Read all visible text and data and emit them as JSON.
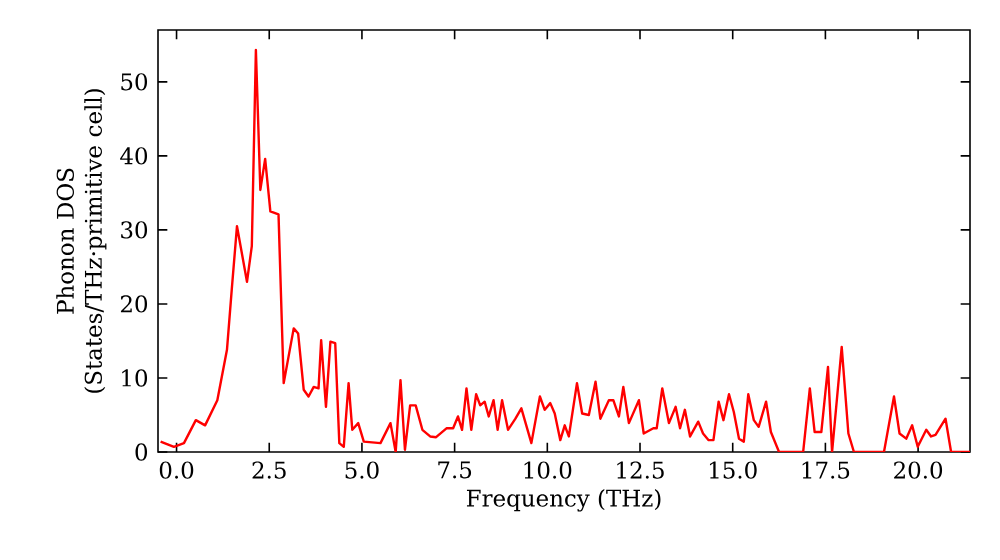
{
  "chart_data": {
    "type": "line",
    "xlabel": "Frequency (THz)",
    "ylabel": "Phonon DOS (States/THz·primitive cell)",
    "xlim": [
      -0.5,
      21.4
    ],
    "ylim": [
      0,
      57
    ],
    "xticks": [
      {
        "value": 0,
        "label": "0.0"
      },
      {
        "value": 2.5,
        "label": "2.5"
      },
      {
        "value": 5,
        "label": "5.0"
      },
      {
        "value": 7.5,
        "label": "7.5"
      },
      {
        "value": 10,
        "label": "10.0"
      },
      {
        "value": 12.5,
        "label": "12.5"
      },
      {
        "value": 15,
        "label": "15.0"
      },
      {
        "value": 17.5,
        "label": "17.5"
      },
      {
        "value": 20,
        "label": "20.0"
      }
    ],
    "yticks": [
      0,
      10,
      20,
      30,
      40,
      50
    ],
    "marker": "none",
    "line_style": "solid",
    "series": [
      {
        "color": "#ff0000",
        "x": [
          -0.43,
          -0.07,
          0.2,
          0.52,
          0.77,
          1.1,
          1.36,
          1.49,
          1.63,
          1.9,
          2.03,
          2.14,
          2.26,
          2.39,
          2.53,
          2.75,
          2.89,
          3.16,
          3.28,
          3.43,
          3.56,
          3.7,
          3.83,
          3.9,
          4.03,
          4.15,
          4.28,
          4.39,
          4.51,
          4.64,
          4.74,
          4.9,
          5.05,
          5.5,
          5.77,
          5.91,
          6.04,
          6.16,
          6.3,
          6.45,
          6.63,
          6.84,
          7.0,
          7.28,
          7.46,
          7.59,
          7.7,
          7.82,
          7.95,
          8.08,
          8.19,
          8.31,
          8.42,
          8.55,
          8.66,
          8.78,
          8.94,
          9.14,
          9.3,
          9.57,
          9.8,
          9.93,
          10.08,
          10.2,
          10.35,
          10.47,
          10.58,
          10.8,
          10.94,
          11.12,
          11.3,
          11.43,
          11.66,
          11.78,
          11.93,
          12.05,
          12.2,
          12.47,
          12.6,
          12.86,
          12.95,
          13.1,
          13.28,
          13.46,
          13.58,
          13.71,
          13.85,
          14.07,
          14.2,
          14.35,
          14.48,
          14.62,
          14.75,
          14.9,
          15.03,
          15.17,
          15.3,
          15.42,
          15.57,
          15.7,
          15.9,
          16.03,
          16.25,
          16.9,
          17.08,
          17.21,
          17.39,
          17.57,
          17.68,
          17.94,
          18.12,
          18.27,
          19.08,
          19.35,
          19.5,
          19.68,
          19.84,
          19.99,
          20.22,
          20.35,
          20.47,
          20.74,
          20.89,
          21.4
        ],
        "values": [
          1.4,
          0.7,
          1.2,
          4.3,
          3.6,
          7.0,
          13.8,
          22,
          30.5,
          23,
          27.8,
          54.3,
          35.4,
          39.6,
          32.5,
          32.1,
          9.3,
          16.7,
          16,
          8.4,
          7.5,
          8.8,
          8.6,
          15.1,
          6.1,
          14.9,
          14.7,
          1.2,
          0.7,
          9.3,
          3,
          3.9,
          1.4,
          1.2,
          3.9,
          0,
          9.7,
          0.3,
          6.3,
          6.3,
          3,
          2.1,
          2,
          3.2,
          3.2,
          4.8,
          3,
          8.6,
          3,
          7.8,
          6.3,
          6.8,
          4.8,
          7,
          3,
          7,
          3,
          4.5,
          5.9,
          1.2,
          7.5,
          5.7,
          6.6,
          5.2,
          1.6,
          3.6,
          2.1,
          9.3,
          5.2,
          5,
          9.5,
          4.5,
          7,
          7,
          4.8,
          8.8,
          3.9,
          7,
          2.5,
          3.2,
          3.2,
          8.6,
          3.9,
          6.1,
          3.2,
          5.7,
          2.1,
          4.1,
          2.5,
          1.6,
          1.6,
          6.8,
          4.3,
          7.8,
          5.4,
          1.8,
          1.4,
          7.8,
          4.3,
          3.4,
          6.8,
          2.7,
          0,
          0,
          8.6,
          2.7,
          2.7,
          11.5,
          0,
          14.2,
          2.5,
          0,
          0,
          7.5,
          2.5,
          1.8,
          3.6,
          0.7,
          3,
          2.1,
          2.3,
          4.5,
          0,
          0
        ]
      }
    ]
  }
}
